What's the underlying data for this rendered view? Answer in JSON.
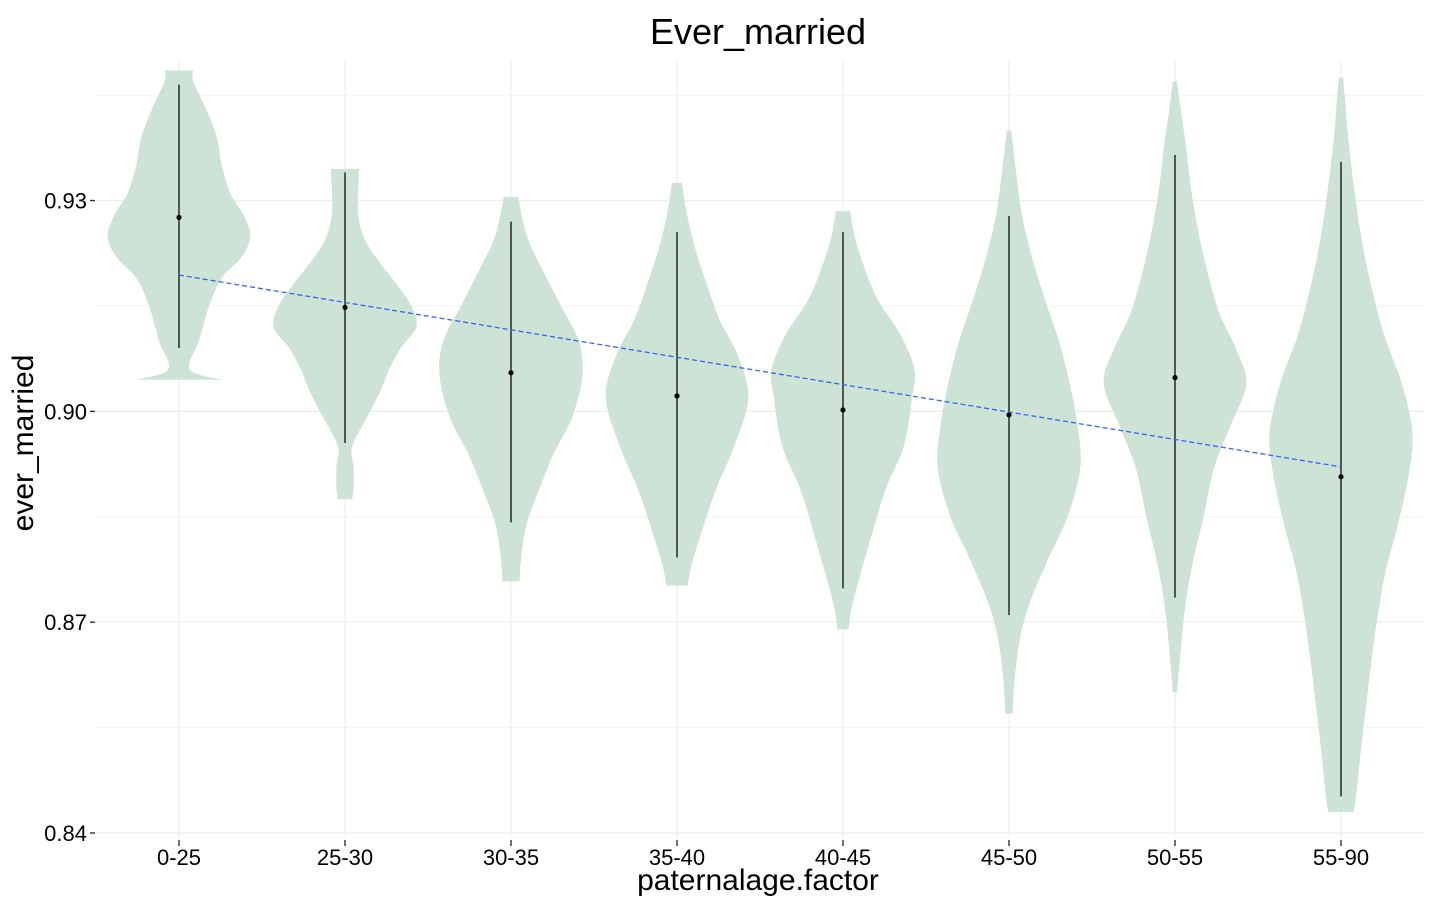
{
  "chart_data": {
    "type": "violin",
    "title": "Ever_married",
    "xlabel": "paternalage.factor",
    "ylabel": "ever_married",
    "ylim": [
      0.839,
      0.95
    ],
    "y_ticks": [
      0.84,
      0.87,
      0.9,
      0.93
    ],
    "y_tick_labels": [
      "0.84",
      "0.87",
      "0.90",
      "0.93"
    ],
    "y_minor_ticks": [
      0.855,
      0.885,
      0.915,
      0.945
    ],
    "categories": [
      "0-25",
      "25-30",
      "30-35",
      "35-40",
      "40-45",
      "45-50",
      "50-55",
      "55-90"
    ],
    "violins": [
      {
        "category": "0-25",
        "min": 0.9045,
        "max": 0.9485,
        "mean": 0.9276,
        "whisker_low": 0.909,
        "whisker_high": 0.9465,
        "profile": [
          [
            0.9045,
            0.6
          ],
          [
            0.906,
            0.15
          ],
          [
            0.91,
            0.28
          ],
          [
            0.915,
            0.42
          ],
          [
            0.919,
            0.6
          ],
          [
            0.922,
            0.88
          ],
          [
            0.925,
            1.0
          ],
          [
            0.928,
            0.9
          ],
          [
            0.931,
            0.72
          ],
          [
            0.935,
            0.6
          ],
          [
            0.939,
            0.53
          ],
          [
            0.943,
            0.38
          ],
          [
            0.947,
            0.2
          ],
          [
            0.9485,
            0.2
          ]
        ]
      },
      {
        "category": "25-30",
        "min": 0.8875,
        "max": 0.9345,
        "mean": 0.9148,
        "whisker_low": 0.8955,
        "whisker_high": 0.934,
        "profile": [
          [
            0.8875,
            0.1
          ],
          [
            0.889,
            0.12
          ],
          [
            0.892,
            0.12
          ],
          [
            0.895,
            0.1
          ],
          [
            0.899,
            0.3
          ],
          [
            0.903,
            0.5
          ],
          [
            0.906,
            0.62
          ],
          [
            0.909,
            0.78
          ],
          [
            0.912,
            1.0
          ],
          [
            0.915,
            0.93
          ],
          [
            0.918,
            0.73
          ],
          [
            0.921,
            0.5
          ],
          [
            0.924,
            0.3
          ],
          [
            0.927,
            0.2
          ],
          [
            0.93,
            0.18
          ],
          [
            0.9345,
            0.2
          ]
        ]
      },
      {
        "category": "30-35",
        "min": 0.8758,
        "max": 0.9305,
        "mean": 0.9055,
        "whisker_low": 0.8842,
        "whisker_high": 0.927,
        "profile": [
          [
            0.8758,
            0.12
          ],
          [
            0.879,
            0.14
          ],
          [
            0.884,
            0.22
          ],
          [
            0.889,
            0.4
          ],
          [
            0.894,
            0.6
          ],
          [
            0.899,
            0.85
          ],
          [
            0.905,
            1.0
          ],
          [
            0.91,
            0.95
          ],
          [
            0.915,
            0.7
          ],
          [
            0.92,
            0.45
          ],
          [
            0.925,
            0.22
          ],
          [
            0.9305,
            0.1
          ]
        ]
      },
      {
        "category": "35-40",
        "min": 0.8752,
        "max": 0.9325,
        "mean": 0.9022,
        "whisker_low": 0.8792,
        "whisker_high": 0.9255,
        "profile": [
          [
            0.8752,
            0.15
          ],
          [
            0.878,
            0.2
          ],
          [
            0.883,
            0.35
          ],
          [
            0.889,
            0.55
          ],
          [
            0.895,
            0.8
          ],
          [
            0.902,
            1.0
          ],
          [
            0.908,
            0.85
          ],
          [
            0.913,
            0.6
          ],
          [
            0.918,
            0.42
          ],
          [
            0.923,
            0.26
          ],
          [
            0.928,
            0.14
          ],
          [
            0.9325,
            0.07
          ]
        ]
      },
      {
        "category": "40-45",
        "min": 0.869,
        "max": 0.9285,
        "mean": 0.9002,
        "whisker_low": 0.8748,
        "whisker_high": 0.9255,
        "profile": [
          [
            0.869,
            0.08
          ],
          [
            0.872,
            0.12
          ],
          [
            0.877,
            0.25
          ],
          [
            0.883,
            0.42
          ],
          [
            0.889,
            0.6
          ],
          [
            0.895,
            0.85
          ],
          [
            0.902,
            0.97
          ],
          [
            0.906,
            1.0
          ],
          [
            0.911,
            0.8
          ],
          [
            0.916,
            0.48
          ],
          [
            0.921,
            0.28
          ],
          [
            0.925,
            0.16
          ],
          [
            0.9285,
            0.1
          ]
        ]
      },
      {
        "category": "45-50",
        "min": 0.857,
        "max": 0.94,
        "mean": 0.8995,
        "whisker_low": 0.871,
        "whisker_high": 0.9278,
        "profile": [
          [
            0.857,
            0.05
          ],
          [
            0.862,
            0.08
          ],
          [
            0.868,
            0.16
          ],
          [
            0.873,
            0.3
          ],
          [
            0.879,
            0.55
          ],
          [
            0.885,
            0.82
          ],
          [
            0.892,
            1.0
          ],
          [
            0.898,
            0.96
          ],
          [
            0.904,
            0.85
          ],
          [
            0.91,
            0.7
          ],
          [
            0.916,
            0.5
          ],
          [
            0.922,
            0.32
          ],
          [
            0.928,
            0.18
          ],
          [
            0.934,
            0.1
          ],
          [
            0.94,
            0.03
          ]
        ]
      },
      {
        "category": "50-55",
        "min": 0.86,
        "max": 0.947,
        "mean": 0.9048,
        "whisker_low": 0.8735,
        "whisker_high": 0.9365,
        "profile": [
          [
            0.86,
            0.03
          ],
          [
            0.866,
            0.08
          ],
          [
            0.872,
            0.14
          ],
          [
            0.878,
            0.24
          ],
          [
            0.885,
            0.4
          ],
          [
            0.892,
            0.55
          ],
          [
            0.898,
            0.78
          ],
          [
            0.904,
            1.0
          ],
          [
            0.909,
            0.85
          ],
          [
            0.914,
            0.62
          ],
          [
            0.92,
            0.45
          ],
          [
            0.926,
            0.32
          ],
          [
            0.932,
            0.22
          ],
          [
            0.938,
            0.15
          ],
          [
            0.943,
            0.08
          ],
          [
            0.947,
            0.03
          ]
        ]
      },
      {
        "category": "55-90",
        "min": 0.843,
        "max": 0.9475,
        "mean": 0.8907,
        "whisker_low": 0.8452,
        "whisker_high": 0.9355,
        "profile": [
          [
            0.843,
            0.18
          ],
          [
            0.846,
            0.22
          ],
          [
            0.852,
            0.28
          ],
          [
            0.858,
            0.35
          ],
          [
            0.864,
            0.42
          ],
          [
            0.87,
            0.5
          ],
          [
            0.877,
            0.62
          ],
          [
            0.884,
            0.8
          ],
          [
            0.891,
            0.95
          ],
          [
            0.897,
            1.0
          ],
          [
            0.904,
            0.85
          ],
          [
            0.911,
            0.6
          ],
          [
            0.918,
            0.42
          ],
          [
            0.925,
            0.28
          ],
          [
            0.932,
            0.18
          ],
          [
            0.939,
            0.1
          ],
          [
            0.944,
            0.06
          ],
          [
            0.9475,
            0.03
          ]
        ]
      }
    ],
    "trend_line": {
      "x_start": "0-25",
      "y_start": 0.9194,
      "x_end": "55-90",
      "y_end": 0.8921,
      "style": "dashed",
      "color": "#3366ee"
    },
    "violin_fill": "#cde3d6",
    "whisker_color": "#333333",
    "mean_point_color": "#000000",
    "grid": true,
    "grid_color": "#eeeeee",
    "background": "#ffffff",
    "legend": false
  }
}
